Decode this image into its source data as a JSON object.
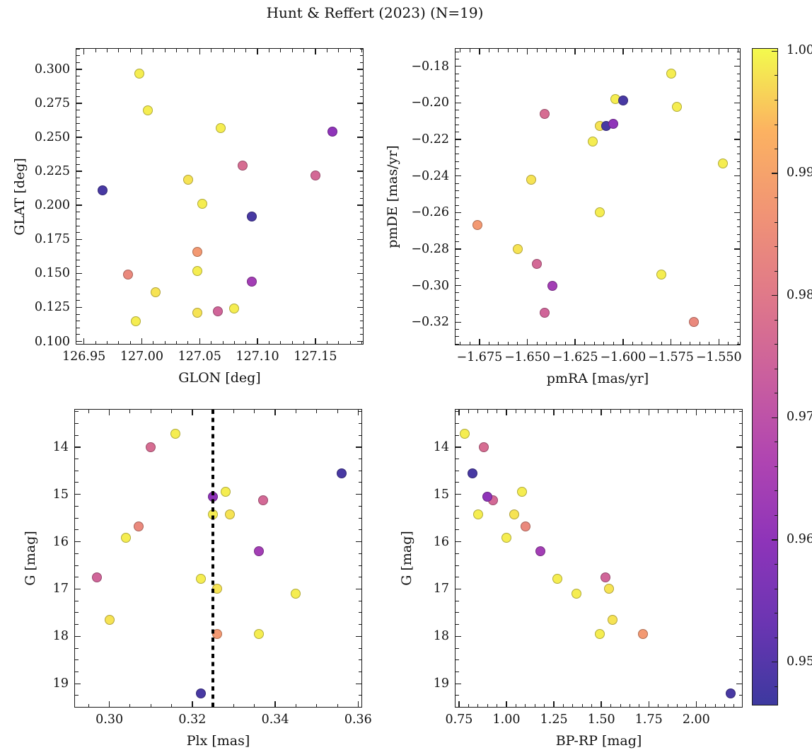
{
  "title": "Hunt & Reffert (2023) (N=19)",
  "chart_data": {
    "type": "scatter",
    "suptitle": "Hunt & Reffert (2023) (N=19)",
    "n_members": 19,
    "colormap": "plasma",
    "color_variable": "membership probability",
    "marker_alpha": 0.8,
    "stars": [
      {
        "glon": 126.998,
        "glat": 0.297,
        "pmra": -1.575,
        "pmde": -0.184,
        "plx": 0.316,
        "g": 13.72,
        "bprp": 0.78,
        "prob": 0.999
      },
      {
        "glon": 127.087,
        "glat": 0.229,
        "pmra": -1.641,
        "pmde": -0.206,
        "plx": 0.31,
        "g": 14.0,
        "bprp": 0.88,
        "prob": 0.977
      },
      {
        "glon": 127.005,
        "glat": 0.27,
        "pmra": -1.604,
        "pmde": -0.198,
        "plx": 0.328,
        "g": 14.95,
        "bprp": 1.08,
        "prob": 0.999
      },
      {
        "glon": 127.068,
        "glat": 0.257,
        "pmra": -1.572,
        "pmde": -0.202,
        "plx": 0.325,
        "g": 15.42,
        "bprp": 0.85,
        "prob": 0.999
      },
      {
        "glon": 127.04,
        "glat": 0.219,
        "pmra": -1.612,
        "pmde": -0.2125,
        "plx": 0.329,
        "g": 15.42,
        "bprp": 1.04,
        "prob": 0.998
      },
      {
        "glon": 127.052,
        "glat": 0.201,
        "pmra": -1.616,
        "pmde": -0.221,
        "plx": 0.304,
        "g": 15.92,
        "bprp": 1.0,
        "prob": 0.999
      },
      {
        "glon": 127.048,
        "glat": 0.152,
        "pmra": -1.548,
        "pmde": -0.233,
        "plx": 0.322,
        "g": 16.78,
        "bprp": 1.27,
        "prob": 0.999
      },
      {
        "glon": 127.012,
        "glat": 0.136,
        "pmra": -1.648,
        "pmde": -0.242,
        "plx": 0.326,
        "g": 17.0,
        "bprp": 1.54,
        "prob": 0.998
      },
      {
        "glon": 127.08,
        "glat": 0.124,
        "pmra": -1.612,
        "pmde": -0.26,
        "plx": 0.345,
        "g": 17.1,
        "bprp": 1.37,
        "prob": 0.999
      },
      {
        "glon": 127.048,
        "glat": 0.121,
        "pmra": -1.655,
        "pmde": -0.28,
        "plx": 0.3,
        "g": 17.65,
        "bprp": 1.56,
        "prob": 0.998
      },
      {
        "glon": 126.995,
        "glat": 0.115,
        "pmra": -1.58,
        "pmde": -0.294,
        "plx": 0.336,
        "g": 17.95,
        "bprp": 1.49,
        "prob": 0.999
      },
      {
        "glon": 126.988,
        "glat": 0.149,
        "pmra": -1.563,
        "pmde": -0.32,
        "plx": 0.307,
        "g": 15.68,
        "bprp": 1.1,
        "prob": 0.984
      },
      {
        "glon": 127.048,
        "glat": 0.166,
        "pmra": -1.676,
        "pmde": -0.267,
        "plx": 0.326,
        "g": 17.95,
        "bprp": 1.72,
        "prob": 0.988
      },
      {
        "glon": 127.15,
        "glat": 0.222,
        "pmra": -1.645,
        "pmde": -0.288,
        "plx": 0.337,
        "g": 15.13,
        "bprp": 0.93,
        "prob": 0.976
      },
      {
        "glon": 127.066,
        "glat": 0.122,
        "pmra": -1.641,
        "pmde": -0.315,
        "plx": 0.297,
        "g": 16.75,
        "bprp": 1.52,
        "prob": 0.975
      },
      {
        "glon": 126.966,
        "glat": 0.211,
        "pmra": -1.6,
        "pmde": -0.1985,
        "plx": 0.356,
        "g": 14.55,
        "bprp": 0.82,
        "prob": 0.948
      },
      {
        "glon": 127.095,
        "glat": 0.192,
        "pmra": -1.609,
        "pmde": -0.2125,
        "plx": 0.322,
        "g": 19.2,
        "bprp": 2.18,
        "prob": 0.948
      },
      {
        "glon": 127.095,
        "glat": 0.144,
        "pmra": -1.637,
        "pmde": -0.3,
        "plx": 0.336,
        "g": 16.2,
        "bprp": 1.18,
        "prob": 0.964
      },
      {
        "glon": 127.165,
        "glat": 0.254,
        "pmra": -1.605,
        "pmde": -0.2115,
        "plx": 0.325,
        "g": 15.05,
        "bprp": 0.9,
        "prob": 0.96
      }
    ],
    "panels": [
      {
        "id": "glon-glat",
        "xkey": "glon",
        "ykey": "glat",
        "xlabel": "GLON [deg]",
        "ylabel": "GLAT [deg]",
        "xlim": [
          126.9435,
          127.191
        ],
        "ylim": [
          0.0982,
          0.315
        ],
        "xtick_values": [
          126.95,
          127.0,
          127.05,
          127.1,
          127.15
        ],
        "xtick_labels": [
          "126.95",
          "127.00",
          "127.05",
          "127.10",
          "127.15"
        ],
        "ytick_values": [
          0.1,
          0.125,
          0.15,
          0.175,
          0.2,
          0.225,
          0.25,
          0.275,
          0.3
        ],
        "ytick_labels": [
          "0.100",
          "0.125",
          "0.150",
          "0.175",
          "0.200",
          "0.225",
          "0.250",
          "0.275",
          "0.300"
        ],
        "xminor_step": 0.01,
        "yminor_step": 0.005
      },
      {
        "id": "pmra-pmde",
        "xkey": "pmra",
        "ykey": "pmde",
        "xlabel": "pmRA [mas/yr]",
        "ylabel": "pmDE [mas/yr]",
        "xlim": [
          -1.6875,
          -1.539
        ],
        "ylim": [
          -0.3323,
          -0.1704
        ],
        "xtick_values": [
          -1.675,
          -1.65,
          -1.625,
          -1.6,
          -1.575,
          -1.55
        ],
        "xtick_labels": [
          "−1.675",
          "−1.650",
          "−1.625",
          "−1.600",
          "−1.575",
          "−1.550"
        ],
        "ytick_values": [
          -0.18,
          -0.2,
          -0.22,
          -0.24,
          -0.26,
          -0.28,
          -0.3,
          -0.32
        ],
        "ytick_labels": [
          "−0.18",
          "−0.20",
          "−0.22",
          "−0.24",
          "−0.26",
          "−0.28",
          "−0.30",
          "−0.32"
        ],
        "xminor_step": 0.005,
        "yminor_step": 0.004
      },
      {
        "id": "plx-g",
        "xkey": "plx",
        "ykey": "g",
        "xlabel": "Plx [mas]",
        "ylabel": "G [mag]",
        "xlim": [
          0.2917,
          0.3608
        ],
        "ylim": [
          19.49,
          13.21
        ],
        "xtick_values": [
          0.3,
          0.32,
          0.34,
          0.36
        ],
        "xtick_labels": [
          "0.30",
          "0.32",
          "0.34",
          "0.36"
        ],
        "ytick_values": [
          14,
          15,
          16,
          17,
          18,
          19
        ],
        "ytick_labels": [
          "14",
          "15",
          "16",
          "17",
          "18",
          "19"
        ],
        "xminor_step": 0.005,
        "yminor_step": 0.25,
        "vline": {
          "x": 0.325,
          "style": "dotted",
          "color": "#000000"
        }
      },
      {
        "id": "bprp-g",
        "xkey": "bprp",
        "ykey": "g",
        "xlabel": "BP-RP [mag]",
        "ylabel": "G [mag]",
        "xlim": [
          0.7315,
          2.241
        ],
        "ylim": [
          19.49,
          13.21
        ],
        "xtick_values": [
          0.75,
          1.0,
          1.25,
          1.5,
          1.75,
          2.0
        ],
        "xtick_labels": [
          "0.75",
          "1.00",
          "1.25",
          "1.50",
          "1.75",
          "2.00"
        ],
        "ytick_values": [
          14,
          15,
          16,
          17,
          18,
          19
        ],
        "ytick_labels": [
          "14",
          "15",
          "16",
          "17",
          "18",
          "19"
        ],
        "xminor_step": 0.05,
        "yminor_step": 0.25
      }
    ],
    "colorbar": {
      "vmin": 0.9465,
      "vmax": 1.0002,
      "tick_values": [
        1.0,
        0.99,
        0.98,
        0.97,
        0.96,
        0.95
      ],
      "tick_labels": [
        "1.00",
        "0.99",
        "0.98",
        "0.97",
        "0.96",
        "0.95"
      ],
      "minor_step": 0.002,
      "top_color": "#f3fa4d",
      "bottom_color": "#3d399f"
    }
  }
}
